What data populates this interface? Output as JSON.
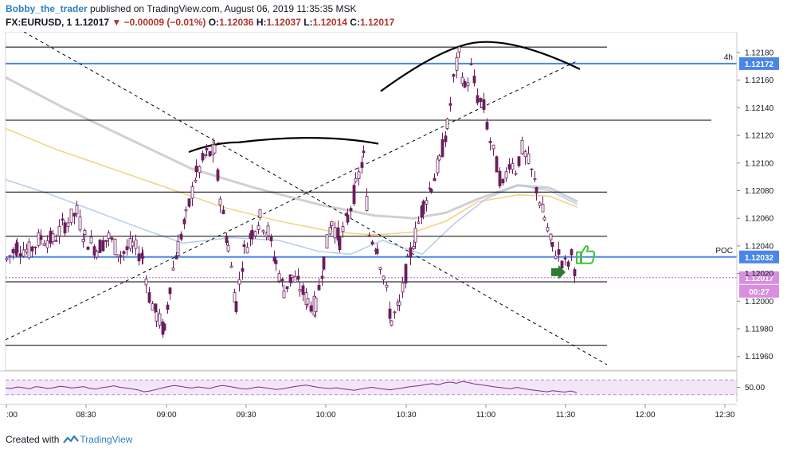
{
  "header": {
    "author": "Bobby_the_trader",
    "published_text": "published on TradingView.com, August 06, 2019 11:35:35 MSK",
    "symbol": "FX:EURUSD, 1",
    "last_price": "1.12017",
    "change": "−0.00009 (−0.01%)",
    "open_label": "O:",
    "open_value": "1.12036",
    "high_label": "H:",
    "high_value": "1.12037",
    "low_label": "L:",
    "low_value": "1.12014",
    "close_label": "C:",
    "close_value": "1.12017"
  },
  "footer": {
    "created_with": "Created with",
    "brand": "TradingView"
  },
  "colors": {
    "bull_candle": "#ffffff",
    "bear_candle": "#6a1f5c",
    "level_line": "#000000",
    "blue_line": "#4a86e8",
    "price_tag": "#d98ee0",
    "rsi_line": "#7b2d8e",
    "rsi_band": "#f3e6f8",
    "ma_beige": "#f0c96a",
    "ma_gray": "#c8c8c8",
    "ma_blue": "#a9c3eb",
    "thumb_up": "#3ec23e",
    "arrow": "#2e7d32"
  },
  "chart_data": {
    "type": "candlestick",
    "symbol": "FX:EURUSD",
    "interval": "1",
    "x_axis": {
      "ticks": [
        ":00",
        "08:30",
        "09:00",
        "09:30",
        "10:00",
        "10:30",
        "11:00",
        "11:30",
        "12:00",
        "12:30"
      ]
    },
    "y_axis": {
      "range": [
        1.1195,
        1.12195
      ],
      "ticks": [
        "1.12180",
        "1.12160",
        "1.12140",
        "1.12120",
        "1.12100",
        "1.12080",
        "1.12060",
        "1.12040",
        "1.12020",
        "1.12000",
        "1.11980",
        "1.11960"
      ]
    },
    "horizontal_levels": [
      1.12184,
      1.12131,
      1.12079,
      1.12047,
      1.12014,
      1.11968
    ],
    "blue_levels": [
      {
        "price": 1.12172,
        "tag": "1.12172",
        "note": "4h"
      },
      {
        "price": 1.12032,
        "tag": "1.12032",
        "note": "POC"
      }
    ],
    "last_price_tag": "1.12017",
    "countdown": "00:27",
    "rsi": {
      "tick": "50.00",
      "level": 50,
      "band": [
        30,
        70
      ],
      "values": [
        48,
        47,
        51,
        49,
        46,
        52,
        50,
        47,
        49,
        53,
        51,
        48,
        50,
        52,
        47,
        45,
        49,
        51,
        54,
        50,
        48,
        46,
        43,
        38,
        40,
        44,
        48,
        52,
        55,
        53,
        50,
        48,
        51,
        49,
        47,
        52,
        55,
        53,
        50,
        47,
        45,
        48,
        51,
        49,
        47,
        44,
        46,
        49,
        52,
        54,
        56,
        53,
        50,
        48,
        47,
        49,
        46,
        44,
        42,
        45,
        48,
        50,
        47,
        45,
        43,
        46,
        48,
        51,
        53,
        55,
        58,
        60,
        57,
        62,
        64,
        61,
        66,
        63,
        59,
        57,
        55,
        52,
        50,
        48,
        46,
        50,
        47,
        44,
        42,
        40,
        38,
        41,
        39,
        37,
        40,
        36
      ]
    }
  }
}
